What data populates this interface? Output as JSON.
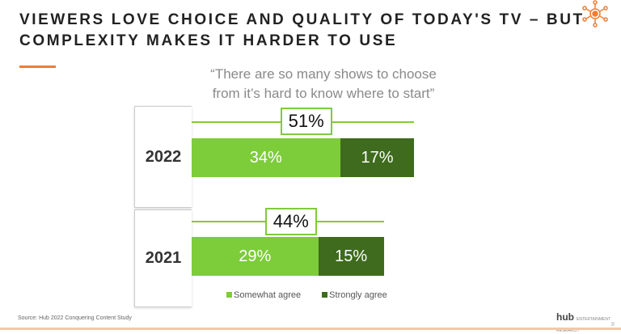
{
  "header": {
    "title_line1": "VIEWERS LOVE CHOICE AND QUALITY OF TODAY'S TV – BUT",
    "title_line2": "COMPLEXITY MAKES IT HARDER TO USE",
    "icon": "network-sun-icon"
  },
  "chart_data": {
    "type": "bar",
    "orientation": "horizontal",
    "stacked": true,
    "title_line1": "“There are so many shows to choose",
    "title_line2": "from it’s hard to know where to start”",
    "categories": [
      "2022",
      "2021"
    ],
    "series": [
      {
        "name": "Somewhat agree",
        "values": [
          34,
          29
        ],
        "labels": [
          "34%",
          "29%"
        ],
        "color": "#7dcc3a"
      },
      {
        "name": "Strongly agree",
        "values": [
          17,
          15
        ],
        "labels": [
          "17%",
          "15%"
        ],
        "color": "#3e6b1d"
      }
    ],
    "totals": [
      51,
      44
    ],
    "total_labels": [
      "51%",
      "44%"
    ],
    "legend_position": "bottom"
  },
  "footer": {
    "source": "Source: Hub 2022 Conquering Content Study",
    "logo": "hub",
    "logo_sub": "ENTERTAINMENT RESEARCH",
    "page": "8"
  }
}
